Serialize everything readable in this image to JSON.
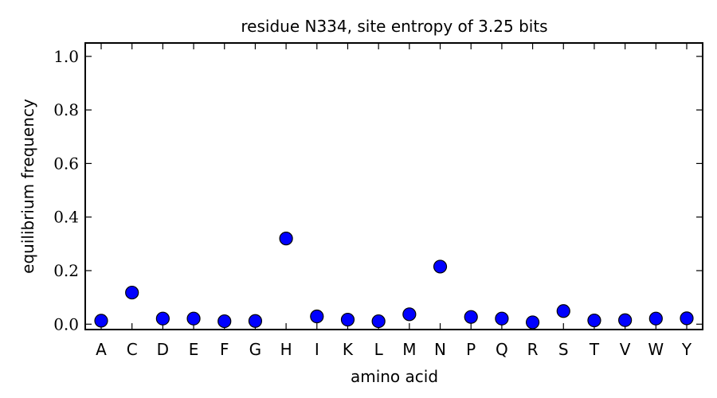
{
  "chart_data": {
    "type": "scatter",
    "title": "residue N334, site entropy of 3.25 bits",
    "xlabel": "amino acid",
    "ylabel": "equilibrium frequency",
    "categories": [
      "A",
      "C",
      "D",
      "E",
      "F",
      "G",
      "H",
      "I",
      "K",
      "L",
      "M",
      "N",
      "P",
      "Q",
      "R",
      "S",
      "T",
      "V",
      "W",
      "Y"
    ],
    "values": [
      0.013,
      0.118,
      0.021,
      0.021,
      0.011,
      0.012,
      0.32,
      0.029,
      0.017,
      0.011,
      0.037,
      0.215,
      0.027,
      0.021,
      0.007,
      0.049,
      0.014,
      0.015,
      0.021,
      0.022
    ],
    "ylim": [
      -0.02,
      1.05
    ],
    "yticks": [
      0.0,
      0.2,
      0.4,
      0.6,
      0.8,
      1.0
    ],
    "ytick_labels": [
      "0.0",
      "0.2",
      "0.4",
      "0.6",
      "0.8",
      "1.0"
    ],
    "grid": false,
    "marker_color": "#0000ff"
  }
}
